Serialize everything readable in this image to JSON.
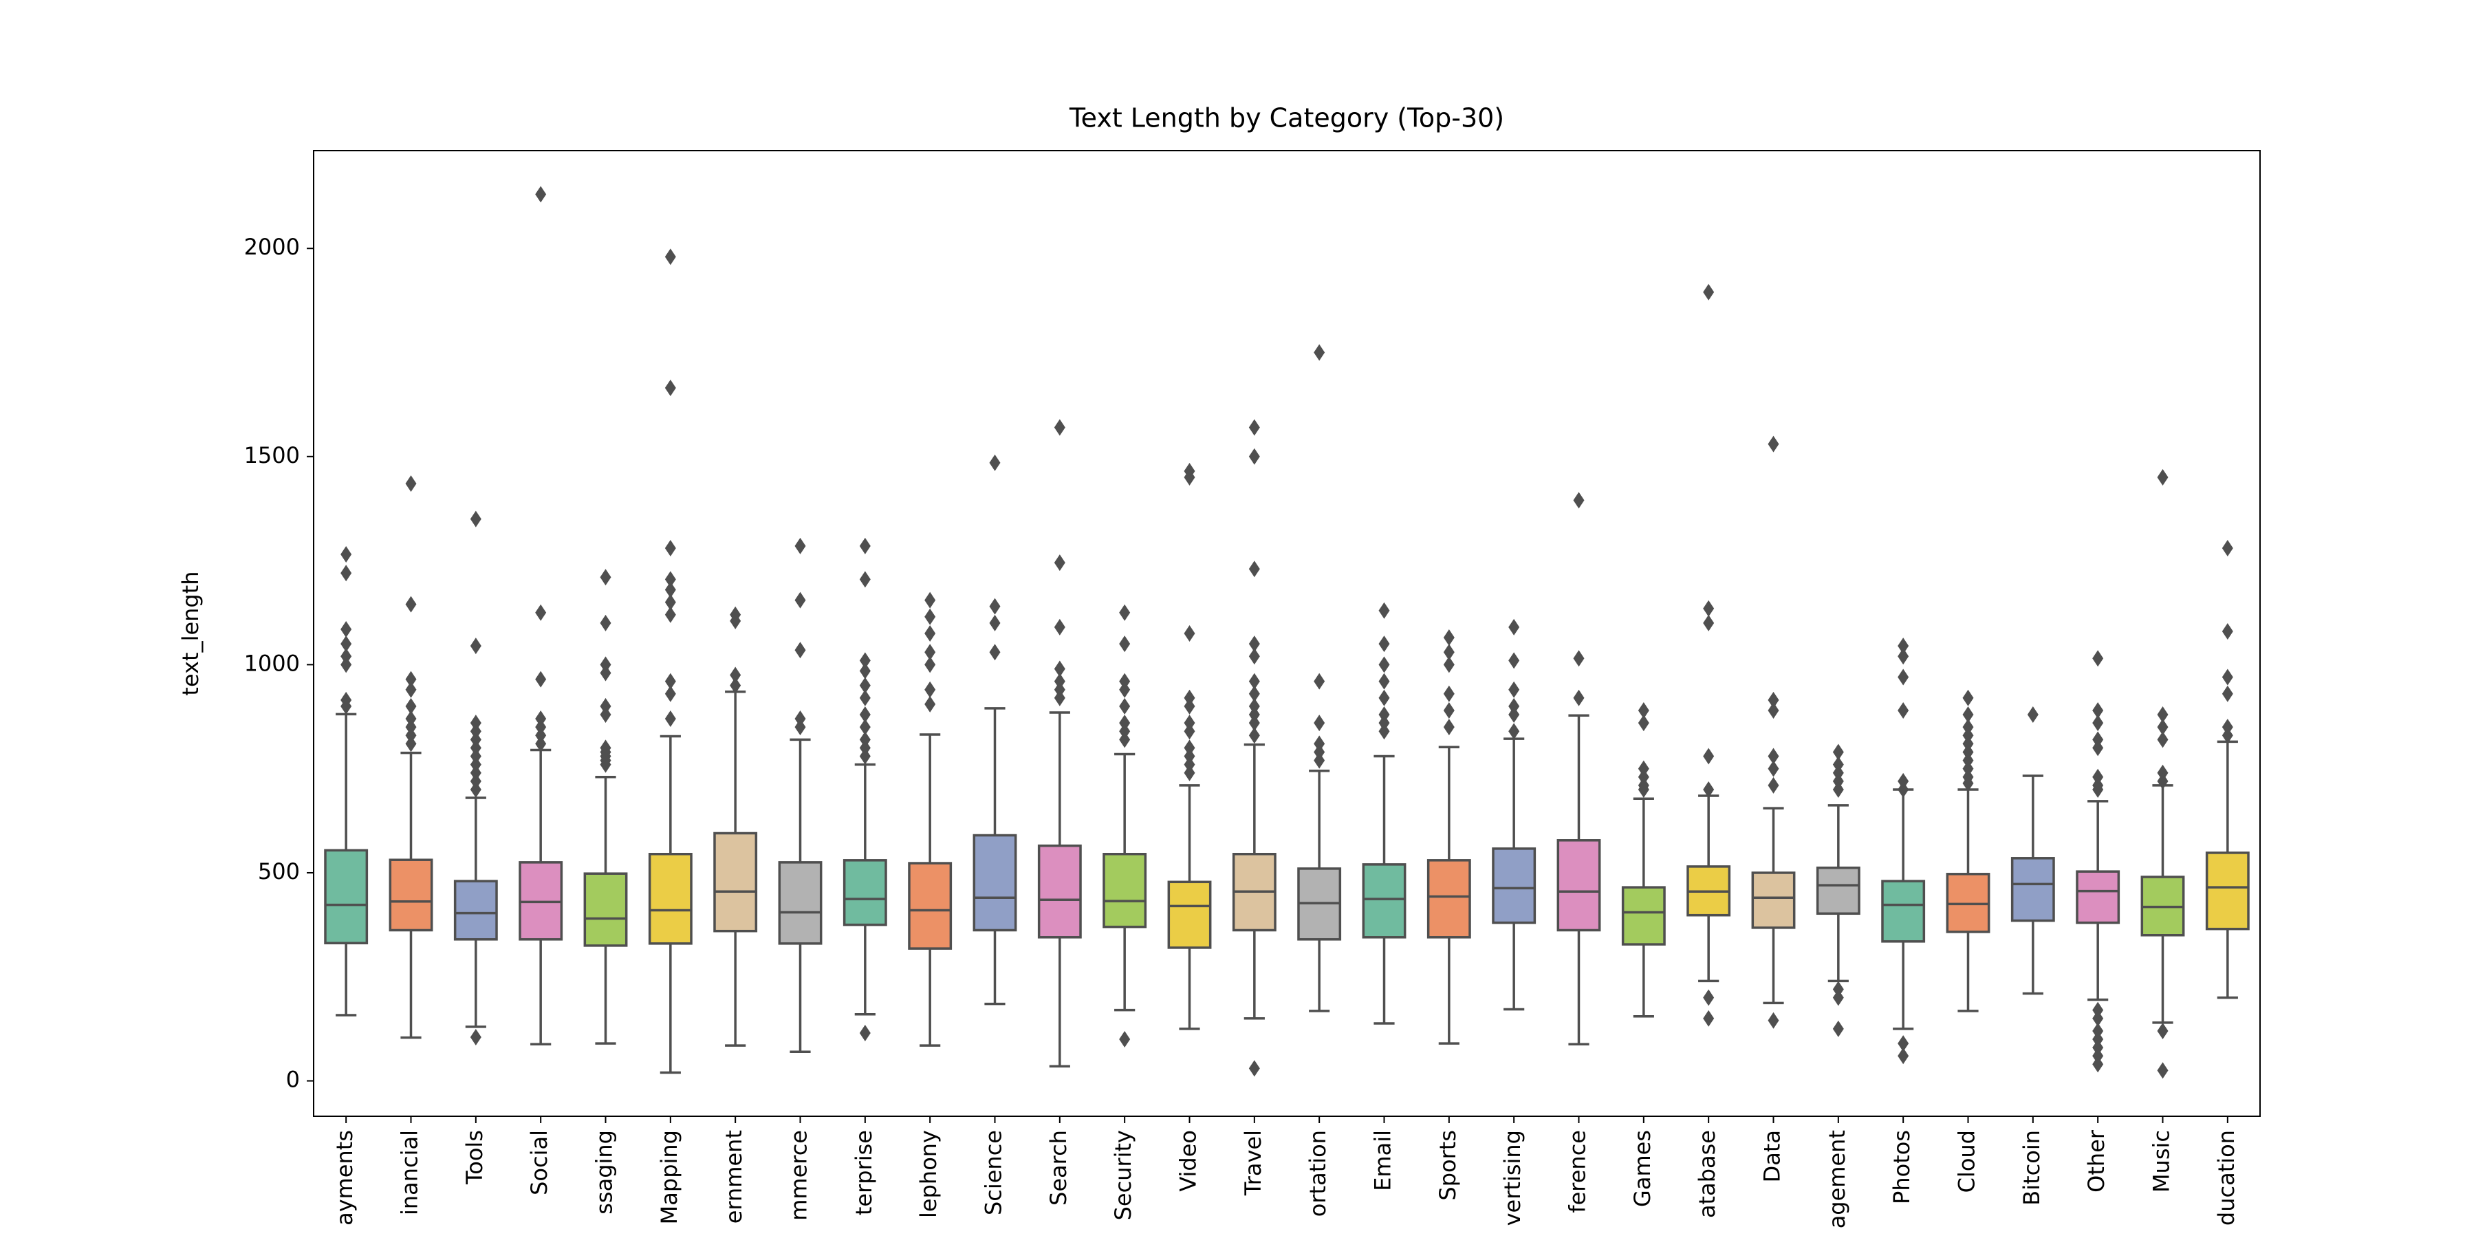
{
  "chart_data": {
    "type": "box",
    "title": "Text Length by Category (Top-30)",
    "y_label": "text_length",
    "categories": [
      "ayments",
      "inancial",
      "Tools",
      "Social",
      "ssaging",
      "Mapping",
      "ernment",
      "mmerce",
      "terprise",
      "lephony",
      "Science",
      "Search",
      "Security",
      "Video",
      "Travel",
      "ortation",
      "Email",
      "Sports",
      "vertising",
      "ference",
      "Games",
      "atabase",
      "Data",
      "agement",
      "Photos",
      "Cloud",
      "Bitcoin",
      "Other",
      "Music",
      "ducation"
    ],
    "colors": [
      "#70bb9f",
      "#ec9166",
      "#909fc6",
      "#dc8fbf",
      "#a3cb5e",
      "#ebcd46",
      "#dcc39f",
      "#b2b2b2",
      "#70bb9f",
      "#ec9166",
      "#909fc6",
      "#dc8fbf",
      "#a3cb5e",
      "#ebcd46",
      "#dcc39f",
      "#b2b2b2",
      "#70bb9f",
      "#ec9166",
      "#909fc6",
      "#dc8fbf",
      "#a3cb5e",
      "#ebcd46",
      "#dcc39f",
      "#b2b2b2",
      "#70bb9f",
      "#ec9166",
      "#909fc6",
      "#dc8fbf",
      "#a3cb5e",
      "#ebcd46"
    ],
    "boxes": [
      {
        "whislo": 158,
        "q1": 331,
        "median": 423,
        "q3": 554,
        "whishi": 881,
        "fliers": [
          1265,
          1220,
          1085,
          1050,
          1020,
          1000,
          915,
          900
        ]
      },
      {
        "whislo": 104,
        "q1": 362,
        "median": 431,
        "q3": 531,
        "whishi": 788,
        "fliers": [
          1435,
          1145,
          965,
          940,
          900,
          870,
          850,
          830,
          810
        ]
      },
      {
        "whislo": 130,
        "q1": 340,
        "median": 403,
        "q3": 480,
        "whishi": 680,
        "fliers": [
          1350,
          1045,
          860,
          840,
          820,
          800,
          780,
          760,
          740,
          720,
          700,
          105
        ]
      },
      {
        "whislo": 88,
        "q1": 340,
        "median": 430,
        "q3": 525,
        "whishi": 795,
        "fliers": [
          2130,
          1125,
          965,
          870,
          850,
          830,
          810
        ]
      },
      {
        "whislo": 90,
        "q1": 325,
        "median": 390,
        "q3": 498,
        "whishi": 730,
        "fliers": [
          1210,
          1100,
          1000,
          980,
          900,
          880,
          800,
          790,
          780,
          770,
          760
        ]
      },
      {
        "whislo": 20,
        "q1": 330,
        "median": 410,
        "q3": 545,
        "whishi": 828,
        "fliers": [
          1980,
          1665,
          1280,
          1205,
          1180,
          1150,
          1120,
          960,
          930,
          870
        ]
      },
      {
        "whislo": 85,
        "q1": 360,
        "median": 455,
        "q3": 595,
        "whishi": 935,
        "fliers": [
          1120,
          1105,
          975,
          950
        ]
      },
      {
        "whislo": 70,
        "q1": 330,
        "median": 405,
        "q3": 525,
        "whishi": 820,
        "fliers": [
          1285,
          1155,
          1035,
          870,
          850
        ]
      },
      {
        "whislo": 160,
        "q1": 375,
        "median": 437,
        "q3": 530,
        "whishi": 760,
        "fliers": [
          1285,
          1205,
          1010,
          985,
          950,
          920,
          880,
          850,
          820,
          800,
          780,
          115
        ]
      },
      {
        "whislo": 85,
        "q1": 318,
        "median": 410,
        "q3": 523,
        "whishi": 832,
        "fliers": [
          1155,
          1115,
          1075,
          1030,
          1000,
          940,
          905
        ]
      },
      {
        "whislo": 185,
        "q1": 362,
        "median": 440,
        "q3": 590,
        "whishi": 895,
        "fliers": [
          1485,
          1140,
          1100,
          1030
        ]
      },
      {
        "whislo": 35,
        "q1": 345,
        "median": 435,
        "q3": 565,
        "whishi": 885,
        "fliers": [
          1570,
          1245,
          1090,
          990,
          960,
          940,
          920
        ]
      },
      {
        "whislo": 170,
        "q1": 370,
        "median": 432,
        "q3": 545,
        "whishi": 785,
        "fliers": [
          1125,
          1050,
          960,
          940,
          900,
          860,
          840,
          820,
          100
        ]
      },
      {
        "whislo": 125,
        "q1": 320,
        "median": 420,
        "q3": 478,
        "whishi": 710,
        "fliers": [
          1465,
          1450,
          1075,
          920,
          900,
          860,
          840,
          800,
          780,
          760,
          740
        ]
      },
      {
        "whislo": 150,
        "q1": 362,
        "median": 455,
        "q3": 545,
        "whishi": 808,
        "fliers": [
          1570,
          1500,
          1230,
          1050,
          1020,
          960,
          930,
          900,
          880,
          860,
          830,
          30
        ]
      },
      {
        "whislo": 168,
        "q1": 340,
        "median": 427,
        "q3": 510,
        "whishi": 745,
        "fliers": [
          1750,
          960,
          860,
          810,
          790,
          770
        ]
      },
      {
        "whislo": 138,
        "q1": 345,
        "median": 437,
        "q3": 520,
        "whishi": 780,
        "fliers": [
          1130,
          1050,
          1000,
          960,
          920,
          880,
          860,
          840
        ]
      },
      {
        "whislo": 90,
        "q1": 345,
        "median": 443,
        "q3": 530,
        "whishi": 802,
        "fliers": [
          1065,
          1030,
          1000,
          930,
          890,
          850
        ]
      },
      {
        "whislo": 172,
        "q1": 380,
        "median": 463,
        "q3": 558,
        "whishi": 822,
        "fliers": [
          1090,
          1010,
          940,
          900,
          880,
          840
        ]
      },
      {
        "whislo": 88,
        "q1": 362,
        "median": 455,
        "q3": 578,
        "whishi": 878,
        "fliers": [
          1395,
          1015,
          920
        ]
      },
      {
        "whislo": 155,
        "q1": 328,
        "median": 405,
        "q3": 465,
        "whishi": 678,
        "fliers": [
          890,
          860,
          750,
          730,
          710,
          700
        ]
      },
      {
        "whislo": 240,
        "q1": 398,
        "median": 455,
        "q3": 515,
        "whishi": 685,
        "fliers": [
          1895,
          1135,
          1100,
          780,
          700,
          200,
          150
        ]
      },
      {
        "whislo": 187,
        "q1": 368,
        "median": 440,
        "q3": 500,
        "whishi": 655,
        "fliers": [
          1530,
          915,
          890,
          780,
          750,
          710,
          145
        ]
      },
      {
        "whislo": 240,
        "q1": 402,
        "median": 470,
        "q3": 512,
        "whishi": 662,
        "fliers": [
          790,
          760,
          740,
          720,
          700,
          220,
          200,
          125
        ]
      },
      {
        "whislo": 125,
        "q1": 335,
        "median": 423,
        "q3": 480,
        "whishi": 700,
        "fliers": [
          1045,
          1020,
          970,
          890,
          720,
          700,
          90,
          60
        ]
      },
      {
        "whislo": 168,
        "q1": 358,
        "median": 425,
        "q3": 497,
        "whishi": 700,
        "fliers": [
          920,
          880,
          850,
          830,
          810,
          790,
          770,
          750,
          730,
          715
        ]
      },
      {
        "whislo": 210,
        "q1": 385,
        "median": 473,
        "q3": 535,
        "whishi": 733,
        "fliers": [
          880
        ]
      },
      {
        "whislo": 195,
        "q1": 380,
        "median": 456,
        "q3": 503,
        "whishi": 672,
        "fliers": [
          1015,
          890,
          860,
          820,
          800,
          730,
          710,
          700,
          170,
          150,
          120,
          100,
          80,
          60,
          40
        ]
      },
      {
        "whislo": 140,
        "q1": 350,
        "median": 418,
        "q3": 490,
        "whishi": 710,
        "fliers": [
          1450,
          880,
          850,
          820,
          740,
          720,
          120,
          25
        ]
      },
      {
        "whislo": 200,
        "q1": 365,
        "median": 465,
        "q3": 548,
        "whishi": 815,
        "fliers": [
          1280,
          1080,
          970,
          930,
          850,
          830
        ]
      }
    ],
    "ylim": [
      -85,
      2235
    ],
    "yticks": [
      0,
      500,
      1000,
      1500,
      2000
    ],
    "line_color": "#4f4f4f"
  }
}
